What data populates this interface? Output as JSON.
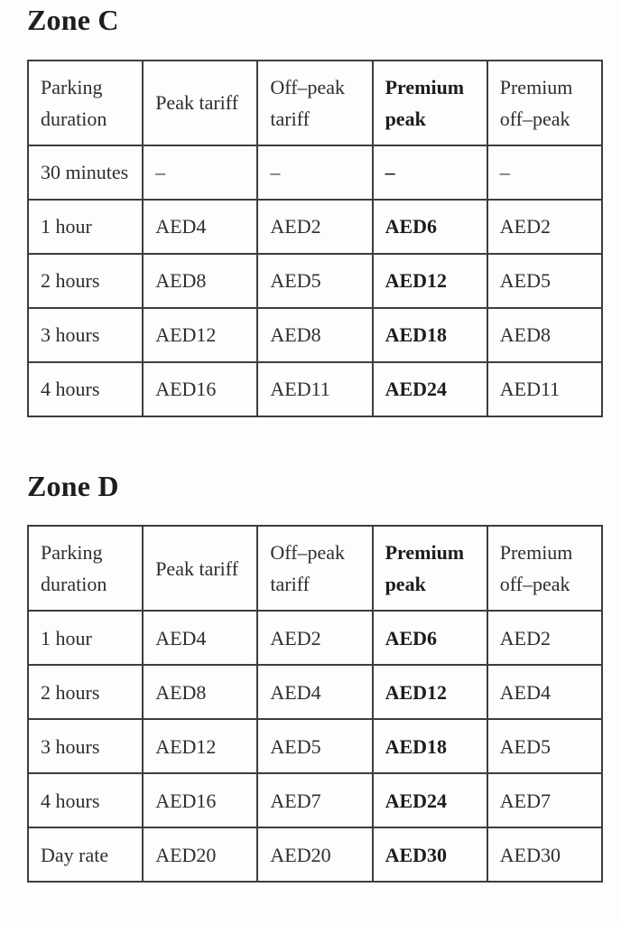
{
  "page": {
    "background_color": "#fdfdfd",
    "text_color": "#2e2e2e",
    "border_color": "#3d3d3d",
    "title_color": "#1e1e1e"
  },
  "sections": [
    {
      "title": "Zone C",
      "table": {
        "columns": [
          "Parking duration",
          "Peak tariff",
          "Off–peak tariff",
          "Premium peak",
          "Premium off–peak"
        ],
        "bold_column_index": 3,
        "rows": [
          [
            "30 minutes",
            "–",
            "–",
            "–",
            "–"
          ],
          [
            "1 hour",
            "AED4",
            "AED2",
            "AED6",
            "AED2"
          ],
          [
            "2 hours",
            "AED8",
            "AED5",
            "AED12",
            "AED5"
          ],
          [
            "3 hours",
            "AED12",
            "AED8",
            "AED18",
            "AED8"
          ],
          [
            "4 hours",
            "AED16",
            "AED11",
            "AED24",
            "AED11"
          ]
        ]
      }
    },
    {
      "title": "Zone D",
      "table": {
        "columns": [
          "Parking duration",
          "Peak tariff",
          "Off–peak tariff",
          "Premium peak",
          "Premium off–peak"
        ],
        "bold_column_index": 3,
        "rows": [
          [
            "1 hour",
            "AED4",
            "AED2",
            "AED6",
            "AED2"
          ],
          [
            "2 hours",
            "AED8",
            "AED4",
            "AED12",
            "AED4"
          ],
          [
            "3 hours",
            "AED12",
            "AED5",
            "AED18",
            "AED5"
          ],
          [
            "4 hours",
            "AED16",
            "AED7",
            "AED24",
            "AED7"
          ],
          [
            "Day rate",
            "AED20",
            "AED20",
            "AED30",
            "AED30"
          ]
        ]
      }
    }
  ]
}
